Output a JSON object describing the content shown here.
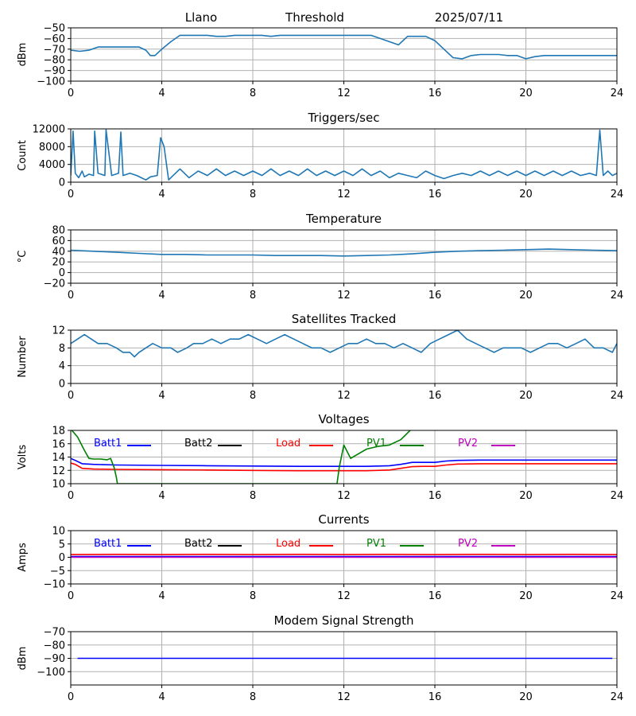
{
  "header": {
    "station": "Llano",
    "label": "Threshold",
    "date": "2025/07/11"
  },
  "chart_data": [
    {
      "id": "threshold",
      "type": "line",
      "title": "",
      "ylabel": "dBm",
      "xlabel": "",
      "xlim": [
        0,
        24
      ],
      "ylim": [
        -100,
        -50
      ],
      "xticks": [
        0,
        4,
        8,
        12,
        16,
        20,
        24
      ],
      "yticks": [
        -100,
        -90,
        -80,
        -70,
        -60,
        -50
      ],
      "grid": true,
      "series": [
        {
          "color": "#1f77b4",
          "x": [
            0,
            0.4,
            0.8,
            1.2,
            1.6,
            2.0,
            2.4,
            2.8,
            3.0,
            3.3,
            3.5,
            3.7,
            4.0,
            4.4,
            4.8,
            5.2,
            5.6,
            6.0,
            6.4,
            6.8,
            7.2,
            7.6,
            8.0,
            8.4,
            8.8,
            9.2,
            9.6,
            10.0,
            10.4,
            10.8,
            11.2,
            11.6,
            12.0,
            12.4,
            12.8,
            13.2,
            13.6,
            14.0,
            14.4,
            14.8,
            15.2,
            15.6,
            16.0,
            16.4,
            16.8,
            17.2,
            17.6,
            18.0,
            18.4,
            18.8,
            19.2,
            19.6,
            20.0,
            20.4,
            20.8,
            21.2,
            21.6,
            22.0,
            22.4,
            22.8,
            23.2,
            23.6,
            24.0
          ],
          "y": [
            -71,
            -72,
            -71,
            -68,
            -68,
            -68,
            -68,
            -68,
            -68,
            -71,
            -76,
            -76,
            -70,
            -63,
            -57,
            -57,
            -57,
            -57,
            -58,
            -58,
            -57,
            -57,
            -57,
            -57,
            -58,
            -57,
            -57,
            -57,
            -57,
            -57,
            -57,
            -57,
            -57,
            -57,
            -57,
            -57,
            -60,
            -63,
            -66,
            -58,
            -58,
            -58,
            -62,
            -70,
            -78,
            -79,
            -76,
            -75,
            -75,
            -75,
            -76,
            -76,
            -79,
            -77,
            -76,
            -76,
            -76,
            -76,
            -76,
            -76,
            -76,
            -76,
            -76
          ]
        }
      ]
    },
    {
      "id": "triggers",
      "type": "line",
      "title": "Triggers/sec",
      "ylabel": "Count",
      "xlabel": "",
      "xlim": [
        0,
        24
      ],
      "ylim": [
        0,
        12000
      ],
      "xticks": [
        0,
        4,
        8,
        12,
        16,
        20,
        24
      ],
      "yticks": [
        0,
        4000,
        8000,
        12000
      ],
      "grid": true,
      "series": [
        {
          "color": "#1f77b4",
          "x": [
            0,
            0.1,
            0.2,
            0.35,
            0.5,
            0.6,
            0.8,
            1.0,
            1.05,
            1.2,
            1.5,
            1.55,
            1.8,
            2.1,
            2.2,
            2.3,
            2.6,
            2.9,
            3.1,
            3.3,
            3.5,
            3.8,
            3.95,
            4.1,
            4.3,
            4.5,
            4.8,
            5.2,
            5.6,
            6.0,
            6.4,
            6.8,
            7.2,
            7.6,
            8.0,
            8.4,
            8.8,
            9.2,
            9.6,
            10.0,
            10.4,
            10.8,
            11.2,
            11.6,
            12.0,
            12.4,
            12.8,
            13.2,
            13.6,
            14.0,
            14.4,
            14.8,
            15.2,
            15.6,
            16.0,
            16.4,
            16.8,
            17.2,
            17.6,
            18.0,
            18.4,
            18.8,
            19.2,
            19.6,
            20.0,
            20.4,
            20.8,
            21.2,
            21.6,
            22.0,
            22.4,
            22.8,
            23.1,
            23.25,
            23.4,
            23.6,
            23.8,
            24.0
          ],
          "y": [
            1500,
            11500,
            2000,
            1000,
            2500,
            1200,
            1800,
            1500,
            11500,
            2000,
            1500,
            11800,
            1500,
            2000,
            11300,
            1500,
            2000,
            1500,
            1000,
            500,
            1200,
            1500,
            10000,
            8000,
            500,
            1500,
            3000,
            1000,
            2500,
            1500,
            3000,
            1500,
            2500,
            1500,
            2500,
            1500,
            3000,
            1500,
            2500,
            1500,
            3000,
            1500,
            2500,
            1500,
            2500,
            1500,
            3000,
            1500,
            2500,
            1000,
            2000,
            1500,
            1000,
            2500,
            1500,
            800,
            1500,
            2000,
            1500,
            2500,
            1500,
            2500,
            1500,
            2500,
            1500,
            2500,
            1500,
            2500,
            1500,
            2500,
            1500,
            2000,
            1500,
            11700,
            1500,
            2500,
            1500,
            2000
          ]
        }
      ]
    },
    {
      "id": "temperature",
      "type": "line",
      "title": "Temperature",
      "ylabel": "°C",
      "xlabel": "",
      "xlim": [
        0,
        24
      ],
      "ylim": [
        -20,
        80
      ],
      "xticks": [
        0,
        4,
        8,
        12,
        16,
        20,
        24
      ],
      "yticks": [
        -20,
        0,
        20,
        40,
        60,
        80
      ],
      "grid": true,
      "series": [
        {
          "color": "#1f77b4",
          "x": [
            0,
            1,
            2,
            3,
            4,
            5,
            6,
            7,
            8,
            9,
            10,
            11,
            12,
            13,
            14,
            15,
            16,
            17,
            18,
            19,
            20,
            21,
            22,
            23,
            24
          ],
          "y": [
            42,
            40,
            38,
            36,
            34,
            34,
            33,
            33,
            33,
            32,
            32,
            32,
            31,
            32,
            33,
            35,
            38,
            40,
            41,
            42,
            43,
            44,
            43,
            42,
            41
          ]
        }
      ]
    },
    {
      "id": "satellites",
      "type": "line",
      "title": "Satellites Tracked",
      "ylabel": "Number",
      "xlabel": "",
      "xlim": [
        0,
        24
      ],
      "ylim": [
        0,
        12
      ],
      "xticks": [
        0,
        4,
        8,
        12,
        16,
        20,
        24
      ],
      "yticks": [
        0,
        4,
        8,
        12
      ],
      "grid": true,
      "series": [
        {
          "color": "#1f77b4",
          "x": [
            0,
            0.3,
            0.6,
            0.9,
            1.2,
            1.6,
            2.0,
            2.3,
            2.6,
            2.8,
            3.0,
            3.3,
            3.6,
            4.0,
            4.4,
            4.7,
            5.1,
            5.4,
            5.8,
            6.2,
            6.6,
            7.0,
            7.4,
            7.8,
            8.2,
            8.6,
            9.0,
            9.4,
            9.8,
            10.2,
            10.6,
            11.0,
            11.4,
            11.8,
            12.2,
            12.6,
            13.0,
            13.4,
            13.8,
            14.2,
            14.6,
            15.0,
            15.4,
            15.8,
            16.2,
            16.6,
            17.0,
            17.4,
            17.8,
            18.2,
            18.6,
            19.0,
            19.4,
            19.8,
            20.2,
            20.6,
            21.0,
            21.4,
            21.8,
            22.2,
            22.6,
            23.0,
            23.4,
            23.8,
            24.0
          ],
          "y": [
            9,
            10,
            11,
            10,
            9,
            9,
            8,
            7,
            7,
            6,
            7,
            8,
            9,
            8,
            8,
            7,
            8,
            9,
            9,
            10,
            9,
            10,
            10,
            11,
            10,
            9,
            10,
            11,
            10,
            9,
            8,
            8,
            7,
            8,
            9,
            9,
            10,
            9,
            9,
            8,
            9,
            8,
            7,
            9,
            10,
            11,
            12,
            10,
            9,
            8,
            7,
            8,
            8,
            8,
            7,
            8,
            9,
            9,
            8,
            9,
            10,
            8,
            8,
            7,
            9
          ]
        }
      ]
    },
    {
      "id": "voltages",
      "type": "line",
      "title": "Voltages",
      "ylabel": "Volts",
      "xlabel": "",
      "xlim": [
        0,
        24
      ],
      "ylim": [
        10,
        18
      ],
      "xticks": [
        0,
        4,
        8,
        12,
        16,
        20,
        24
      ],
      "yticks": [
        10,
        12,
        14,
        16,
        18
      ],
      "grid": true,
      "legend": "inside-top",
      "series": [
        {
          "name": "Batt1",
          "color": "#0000ff",
          "x": [
            0,
            0.2,
            0.5,
            1,
            2,
            4,
            6,
            8,
            10,
            12,
            13,
            14,
            14.5,
            15,
            15.5,
            16,
            16.5,
            17,
            18,
            20,
            22,
            24
          ],
          "y": [
            13.8,
            13.5,
            13.0,
            12.9,
            12.8,
            12.75,
            12.7,
            12.65,
            12.6,
            12.6,
            12.6,
            12.7,
            12.9,
            13.2,
            13.2,
            13.2,
            13.4,
            13.5,
            13.55,
            13.55,
            13.55,
            13.55
          ]
        },
        {
          "name": "Batt2",
          "color": "#000000",
          "x": [],
          "y": []
        },
        {
          "name": "Load",
          "color": "#ff0000",
          "x": [
            0,
            0.2,
            0.5,
            1,
            2,
            4,
            6,
            8,
            10,
            12,
            13,
            14,
            14.5,
            15,
            15.5,
            16,
            16.5,
            17,
            18,
            20,
            22,
            24
          ],
          "y": [
            13.1,
            12.9,
            12.3,
            12.2,
            12.15,
            12.1,
            12.05,
            12.0,
            11.95,
            11.95,
            11.95,
            12.05,
            12.3,
            12.55,
            12.6,
            12.6,
            12.8,
            12.95,
            13.0,
            13.0,
            13.0,
            13.0
          ]
        },
        {
          "name": "PV1",
          "color": "#008000",
          "x": [
            0,
            0.3,
            0.6,
            0.8,
            1.0,
            1.3,
            1.6,
            1.75,
            1.9,
            2.0,
            2.05,
            11.7,
            11.8,
            12.0,
            12.3,
            12.5,
            13.0,
            13.5,
            14.0,
            14.5,
            15.0
          ],
          "y": [
            18.2,
            17.0,
            15.0,
            13.8,
            13.7,
            13.7,
            13.6,
            13.8,
            12.5,
            11.0,
            10.0,
            10.0,
            12.5,
            15.8,
            13.8,
            14.2,
            15.2,
            15.6,
            15.8,
            16.6,
            18.3
          ]
        },
        {
          "name": "PV2",
          "color": "#bf00bf",
          "x": [],
          "y": []
        }
      ]
    },
    {
      "id": "currents",
      "type": "line",
      "title": "Currents",
      "ylabel": "Amps",
      "xlabel": "",
      "xlim": [
        0,
        24
      ],
      "ylim": [
        -10,
        10
      ],
      "xticks": [
        0,
        4,
        8,
        12,
        16,
        20,
        24
      ],
      "yticks": [
        -10,
        -5,
        0,
        5,
        10
      ],
      "grid": true,
      "legend": "inside-top",
      "series": [
        {
          "name": "Batt1",
          "color": "#0000ff",
          "x": [
            0,
            24
          ],
          "y": [
            0.3,
            0.3
          ]
        },
        {
          "name": "Batt2",
          "color": "#000000",
          "x": [],
          "y": []
        },
        {
          "name": "Load",
          "color": "#ff0000",
          "x": [
            0,
            2,
            4,
            6,
            8,
            10,
            12,
            14,
            16,
            18,
            20,
            22,
            24
          ],
          "y": [
            1.0,
            1.1,
            1.0,
            1.1,
            1.0,
            1.1,
            1.0,
            1.1,
            1.0,
            1.1,
            1.0,
            1.1,
            1.0
          ]
        },
        {
          "name": "PV1",
          "color": "#008000",
          "x": [],
          "y": []
        },
        {
          "name": "PV2",
          "color": "#bf00bf",
          "x": [
            0,
            24
          ],
          "y": [
            0.0,
            0.0
          ]
        }
      ]
    },
    {
      "id": "modem",
      "type": "line",
      "title": "Modem Signal Strength",
      "ylabel": "dBm",
      "xlabel": "",
      "xlim": [
        0,
        24
      ],
      "ylim": [
        -110,
        -70
      ],
      "xticks": [
        0,
        4,
        8,
        12,
        16,
        20,
        24
      ],
      "yticks": [
        -100,
        -90,
        -80,
        -70
      ],
      "grid": true,
      "series": [
        {
          "color": "#0000ff",
          "x": [
            0.3,
            23.8
          ],
          "y": [
            -90,
            -90
          ]
        }
      ]
    }
  ]
}
